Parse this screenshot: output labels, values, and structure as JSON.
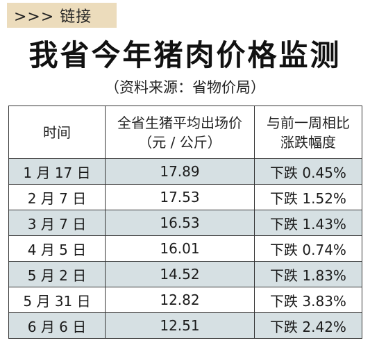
{
  "tag": {
    "text": ">>> 链接",
    "background": "#ecdcbc"
  },
  "title": "我省今年猪肉价格监测",
  "source": "（资料来源：省物价局）",
  "colors": {
    "row_shade": "#d6e0e3",
    "border": "#333333"
  },
  "table": {
    "headers": {
      "time": "时间",
      "price_line1": "全省生猪平均出场价",
      "price_line2": "（元 / 公斤）",
      "change_line1": "与前一周相比",
      "change_line2": "涨跌幅度"
    },
    "rows": [
      {
        "date": "1 月 17 日",
        "price": "17.89",
        "change": "下跌 0.45%"
      },
      {
        "date": "2 月 7 日",
        "price": "17.53",
        "change": "下跌 1.52%"
      },
      {
        "date": "3 月 7 日",
        "price": "16.53",
        "change": "下跌 1.43%"
      },
      {
        "date": "4 月 5 日",
        "price": "16.01",
        "change": "下跌 0.74%"
      },
      {
        "date": "5 月 2 日",
        "price": "14.52",
        "change": "下跌 1.83%"
      },
      {
        "date": "5 月 31 日",
        "price": "12.82",
        "change": "下跌 3.83%"
      },
      {
        "date": "6 月 6 日",
        "price": "12.51",
        "change": "下跌 2.42%"
      }
    ]
  }
}
